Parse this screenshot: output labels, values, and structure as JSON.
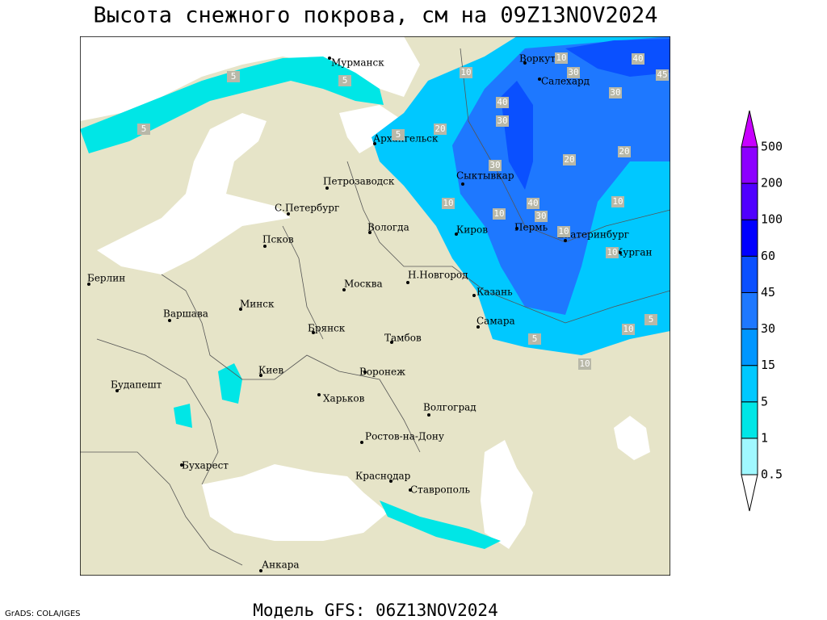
{
  "title": "Высота снежного покрова, см на 09Z13NOV2024",
  "footer_left": "GrADS: COLA/IGES",
  "footer_center": "Модель GFS: 06Z13NOV2024",
  "cities": [
    "Мурманск",
    "Воркута",
    "Салехард",
    "Архангельск",
    "Петрозаводск",
    "Сыктывкар",
    "С.Петербург",
    "Вологда",
    "Киров",
    "Пермь",
    "Екатеринбург",
    "Псков",
    "Курган",
    "Берлин",
    "Н.Новгород",
    "Москва",
    "Казань",
    "Минск",
    "Варшава",
    "Самара",
    "Брянск",
    "Тамбов",
    "Воронеж",
    "Киев",
    "Будапешт",
    "Харьков",
    "Волгоград",
    "Ростов-на-Дону",
    "Бухарест",
    "Краснодар",
    "Ставрополь",
    "Анкара"
  ],
  "contour_labels": [
    5,
    5,
    5,
    5,
    10,
    10,
    30,
    40,
    45,
    30,
    40,
    30,
    20,
    30,
    20,
    20,
    10,
    10,
    40,
    30,
    10,
    10,
    10,
    5,
    10,
    5,
    10
  ],
  "colorbar": {
    "levels": [
      0.5,
      1,
      5,
      15,
      30,
      45,
      60,
      100,
      200,
      500
    ],
    "colors": [
      "#ffffff",
      "#a0f8ff",
      "#00e6e6",
      "#00c8ff",
      "#0096ff",
      "#1e78ff",
      "#0a50ff",
      "#0000ff",
      "#5000ff",
      "#8c00ff",
      "#c800ff"
    ]
  }
}
